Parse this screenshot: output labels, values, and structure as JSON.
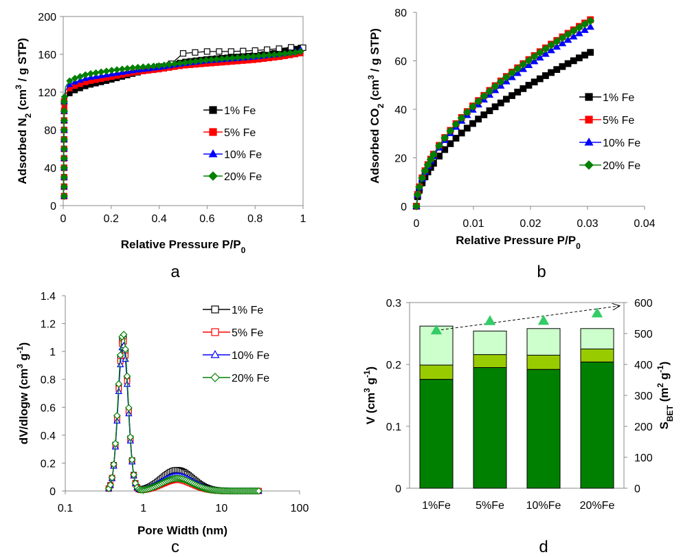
{
  "chart_data": [
    {
      "panel": "a",
      "type": "line",
      "xlabel": "Relative Pressure P/P",
      "xlabel_sub": "0",
      "ylabel": "Adsorbed N",
      "ylabel_sub": "2",
      "ylabel_rest": " (cm",
      "ylabel_sup": "3",
      "ylabel_end": " / g STP)",
      "xlim": [
        0,
        1
      ],
      "ylim": [
        0,
        200
      ],
      "xticks": [
        "0",
        "0.2",
        "0.4",
        "0.6",
        "0.8",
        "1"
      ],
      "yticks": [
        "0",
        "40",
        "80",
        "120",
        "160",
        "200"
      ],
      "xtick_values": [
        0,
        0.2,
        0.4,
        0.6,
        0.8,
        1
      ],
      "ytick_values": [
        0,
        40,
        80,
        120,
        160,
        200
      ],
      "legend_position": "center-right",
      "grid": false,
      "series": [
        {
          "name": "1% Fe",
          "color": "#000000",
          "marker": "square",
          "filled": true,
          "curve": [
            [
              0.001,
              10
            ],
            [
              0.002,
              40
            ],
            [
              0.003,
              80
            ],
            [
              0.005,
              100
            ],
            [
              0.01,
              112
            ],
            [
              0.03,
              120
            ],
            [
              0.1,
              127
            ],
            [
              0.2,
              133
            ],
            [
              0.3,
              140
            ],
            [
              0.4,
              146
            ],
            [
              0.5,
              152
            ],
            [
              0.6,
              155
            ],
            [
              0.7,
              157
            ],
            [
              0.8,
              159
            ],
            [
              0.9,
              162
            ],
            [
              0.97,
              166
            ],
            [
              0.99,
              167
            ],
            [
              0.97,
              168
            ],
            [
              0.9,
              166
            ],
            [
              0.8,
              164
            ],
            [
              0.7,
              163
            ],
            [
              0.6,
              163
            ],
            [
              0.5,
              161
            ],
            [
              0.45,
              150
            ],
            [
              0.4,
              147
            ]
          ]
        },
        {
          "name": "5% Fe",
          "color": "#ff0000",
          "marker": "square",
          "filled": true,
          "curve": [
            [
              0.001,
              10
            ],
            [
              0.002,
              40
            ],
            [
              0.003,
              80
            ],
            [
              0.005,
              105
            ],
            [
              0.01,
              118
            ],
            [
              0.03,
              125
            ],
            [
              0.1,
              131
            ],
            [
              0.2,
              136
            ],
            [
              0.3,
              141
            ],
            [
              0.4,
              144
            ],
            [
              0.5,
              148
            ],
            [
              0.6,
              150
            ],
            [
              0.7,
              152
            ],
            [
              0.8,
              154
            ],
            [
              0.9,
              157
            ],
            [
              0.97,
              160
            ],
            [
              0.99,
              161
            ]
          ]
        },
        {
          "name": "10% Fe",
          "color": "#0000ff",
          "marker": "triangle",
          "filled": true,
          "curve": [
            [
              0.001,
              10
            ],
            [
              0.002,
              40
            ],
            [
              0.003,
              80
            ],
            [
              0.005,
              110
            ],
            [
              0.01,
              122
            ],
            [
              0.03,
              129
            ],
            [
              0.1,
              135
            ],
            [
              0.2,
              139
            ],
            [
              0.3,
              143
            ],
            [
              0.4,
              146
            ],
            [
              0.5,
              150
            ],
            [
              0.6,
              153
            ],
            [
              0.7,
              155
            ],
            [
              0.8,
              157
            ],
            [
              0.9,
              160
            ],
            [
              0.97,
              163
            ],
            [
              0.99,
              165
            ]
          ]
        },
        {
          "name": "20% Fe",
          "color": "#008000",
          "marker": "diamond",
          "filled": true,
          "curve": [
            [
              0.001,
              10
            ],
            [
              0.002,
              40
            ],
            [
              0.003,
              80
            ],
            [
              0.005,
              115
            ],
            [
              0.01,
              126
            ],
            [
              0.03,
              133
            ],
            [
              0.1,
              139
            ],
            [
              0.2,
              143
            ],
            [
              0.3,
              146
            ],
            [
              0.4,
              148
            ],
            [
              0.5,
              151
            ],
            [
              0.6,
              154
            ],
            [
              0.7,
              156
            ],
            [
              0.8,
              158
            ],
            [
              0.9,
              160
            ],
            [
              0.97,
              162
            ],
            [
              0.99,
              163
            ]
          ]
        }
      ]
    },
    {
      "panel": "b",
      "type": "line",
      "xlabel": "Relative Pressure P/P",
      "xlabel_sub": "0",
      "ylabel": "Adsorbed CO",
      "ylabel_sub": "2",
      "ylabel_rest": " (cm",
      "ylabel_sup": "3",
      "ylabel_end": " / g STP)",
      "xlim": [
        0,
        0.04
      ],
      "ylim": [
        0,
        80
      ],
      "xticks": [
        "0",
        "0.01",
        "0.02",
        "0.03",
        "0.04"
      ],
      "yticks": [
        "0",
        "20",
        "40",
        "60",
        "80"
      ],
      "xtick_values": [
        0,
        0.01,
        0.02,
        0.03,
        0.04
      ],
      "ytick_values": [
        0,
        20,
        40,
        60,
        80
      ],
      "legend_position": "center-right",
      "grid": false,
      "series": [
        {
          "name": "1% Fe",
          "color": "#000000",
          "marker": "square",
          "filled": true,
          "A": 63.5
        },
        {
          "name": "5% Fe",
          "color": "#ff0000",
          "marker": "square",
          "filled": true,
          "A": 77
        },
        {
          "name": "10% Fe",
          "color": "#0000ff",
          "marker": "triangle",
          "filled": true,
          "A": 74
        },
        {
          "name": "20% Fe",
          "color": "#008000",
          "marker": "diamond",
          "filled": true,
          "A": 76.5
        }
      ]
    },
    {
      "panel": "c",
      "type": "line",
      "xlabel": "Pore Width (nm)",
      "ylabel": "dV/dlogw (cm",
      "ylabel_sup": "3",
      "ylabel_rest": " g",
      "ylabel_sup2": "-1",
      "ylabel_end": ")",
      "xscale": "log",
      "xlim": [
        0.1,
        100
      ],
      "ylim": [
        0,
        1.4
      ],
      "xticks": [
        "0.1",
        "1",
        "10",
        "100"
      ],
      "yticks": [
        "0",
        "0.2",
        "0.4",
        "0.6",
        "0.8",
        "1",
        "1.2",
        "1.4"
      ],
      "xtick_values": [
        0.1,
        1,
        10,
        100
      ],
      "ytick_values": [
        0,
        0.2,
        0.4,
        0.6,
        0.8,
        1,
        1.2,
        1.4
      ],
      "legend_position": "top-right",
      "grid": false,
      "series": [
        {
          "name": "1% Fe",
          "color": "#000000",
          "marker": "square",
          "filled": false,
          "peak1": 1.1,
          "peak2": 0.15
        },
        {
          "name": "5% Fe",
          "color": "#ff0000",
          "marker": "square",
          "filled": false,
          "peak1": 1.08,
          "peak2": 0.08
        },
        {
          "name": "10% Fe",
          "color": "#0000ff",
          "marker": "triangle",
          "filled": false,
          "peak1": 1.05,
          "peak2": 0.11
        },
        {
          "name": "20% Fe",
          "color": "#008000",
          "marker": "diamond",
          "filled": false,
          "peak1": 1.13,
          "peak2": 0.09
        }
      ]
    },
    {
      "panel": "d",
      "type": "bar",
      "stacked": true,
      "ylabel": "V (cm",
      "ylabel_sup": "3",
      "ylabel_rest": " g",
      "ylabel_sup2": "-1",
      "ylabel_end": ")",
      "y2label": "S",
      "y2label_sub": "BET",
      "y2label_rest": " (m",
      "y2label_sup": "2",
      "y2label_rest2": " g",
      "y2label_sup2": "-1",
      "y2label_end": ")",
      "categories": [
        "1%Fe",
        "5%Fe",
        "10%Fe",
        "20%Fe"
      ],
      "ylim": [
        0,
        0.3
      ],
      "y2lim": [
        0,
        600
      ],
      "yticks": [
        "0",
        "0.1",
        "0.2",
        "0.3"
      ],
      "ytick_values": [
        0,
        0.1,
        0.2,
        0.3
      ],
      "y2ticks": [
        "0",
        "100",
        "200",
        "300",
        "400",
        "500",
        "600"
      ],
      "y2tick_values": [
        0,
        100,
        200,
        300,
        400,
        500,
        600
      ],
      "segment_colors": [
        "#008000",
        "#99cc00",
        "#ccffcc"
      ],
      "segments": [
        {
          "values": [
            0.176,
            0.195,
            0.192,
            0.204
          ]
        },
        {
          "values": [
            0.023,
            0.021,
            0.023,
            0.021
          ]
        },
        {
          "values": [
            0.063,
            0.038,
            0.043,
            0.033
          ]
        }
      ],
      "sbet": {
        "color": "#33cc66",
        "marker": "triangle",
        "values": [
          510,
          540,
          541,
          565
        ]
      }
    }
  ],
  "panel_letters": [
    "a",
    "b",
    "c",
    "d"
  ]
}
